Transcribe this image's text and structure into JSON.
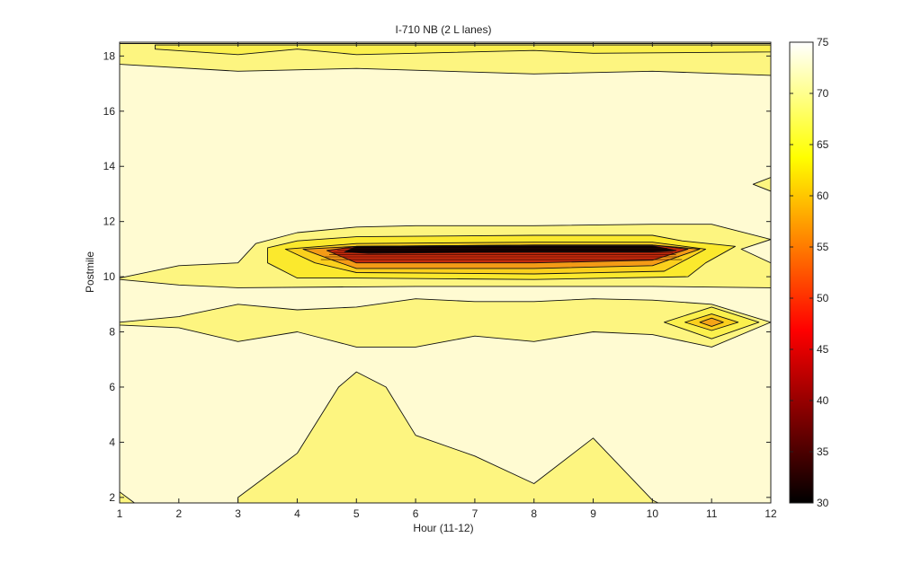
{
  "chart_data": {
    "type": "contour",
    "title": "I-710 NB (2 L lanes)",
    "xlabel": "Hour (11-12)",
    "ylabel": "Postmile",
    "xlim": [
      1,
      12
    ],
    "ylim": [
      1.8,
      18.5
    ],
    "x_ticks": [
      1,
      2,
      3,
      4,
      5,
      6,
      7,
      8,
      9,
      10,
      11,
      12
    ],
    "y_ticks": [
      2,
      4,
      6,
      8,
      10,
      12,
      14,
      16,
      18
    ],
    "colorbar": {
      "colormap": "hot",
      "min": 30,
      "max": 75,
      "ticks": [
        30,
        35,
        40,
        45,
        50,
        55,
        60,
        65,
        70,
        75
      ]
    },
    "regions": [
      {
        "name": "background",
        "level": 72,
        "color": "#fffbd2",
        "polygon": [
          [
            1,
            1.8
          ],
          [
            12,
            1.8
          ],
          [
            12,
            18.5
          ],
          [
            1,
            18.5
          ]
        ]
      },
      {
        "name": "top-band",
        "level": 68,
        "color": "#fdf580",
        "polygon": [
          [
            1,
            17.7
          ],
          [
            3,
            17.45
          ],
          [
            5,
            17.55
          ],
          [
            8,
            17.35
          ],
          [
            10,
            17.45
          ],
          [
            12,
            17.3
          ],
          [
            12,
            18.45
          ],
          [
            1,
            18.45
          ]
        ]
      },
      {
        "name": "top-band-inner",
        "level": 66,
        "color": "#fbf04d",
        "polygon": [
          [
            1.6,
            18.25
          ],
          [
            3,
            18.05
          ],
          [
            4,
            18.25
          ],
          [
            5,
            18.05
          ],
          [
            8,
            18.2
          ],
          [
            9,
            18.1
          ],
          [
            12,
            18.15
          ],
          [
            12,
            18.4
          ],
          [
            1.6,
            18.4
          ]
        ]
      },
      {
        "name": "hot-spot-edge",
        "level": 70,
        "color": "#fdf580",
        "polygon": [
          [
            12,
            13.6
          ],
          [
            11.7,
            13.35
          ],
          [
            12,
            13.1
          ]
        ]
      },
      {
        "name": "middle-band",
        "level": 68,
        "color": "#fdf580",
        "polygon": [
          [
            1,
            9.95
          ],
          [
            2,
            10.4
          ],
          [
            3,
            10.5
          ],
          [
            3.3,
            11.2
          ],
          [
            4,
            11.6
          ],
          [
            5,
            11.8
          ],
          [
            6,
            11.85
          ],
          [
            8,
            11.85
          ],
          [
            10,
            11.9
          ],
          [
            11,
            11.9
          ],
          [
            12,
            11.35
          ],
          [
            11.5,
            11
          ],
          [
            12,
            10.5
          ],
          [
            12,
            9.6
          ],
          [
            10,
            9.65
          ],
          [
            8,
            9.65
          ],
          [
            6,
            9.65
          ],
          [
            3,
            9.6
          ],
          [
            2,
            9.7
          ],
          [
            1,
            9.9
          ]
        ]
      },
      {
        "name": "slowdown-outer",
        "level": 63,
        "color": "#fbe92d",
        "polygon": [
          [
            3.5,
            11.05
          ],
          [
            4,
            11.3
          ],
          [
            5,
            11.45
          ],
          [
            8,
            11.5
          ],
          [
            10,
            11.5
          ],
          [
            10.5,
            11.3
          ],
          [
            11.4,
            11.1
          ],
          [
            10.9,
            10.5
          ],
          [
            10.6,
            10.0
          ],
          [
            8,
            9.9
          ],
          [
            5,
            9.95
          ],
          [
            4,
            9.95
          ],
          [
            3.5,
            10.5
          ]
        ]
      },
      {
        "name": "slowdown-inner",
        "level": 60,
        "color": "#fbd01d",
        "polygon": [
          [
            3.8,
            11.0
          ],
          [
            5,
            11.2
          ],
          [
            8,
            11.25
          ],
          [
            10,
            11.25
          ],
          [
            10.9,
            11.0
          ],
          [
            10.2,
            10.2
          ],
          [
            8,
            10.1
          ],
          [
            5,
            10.15
          ],
          [
            4.3,
            10.5
          ]
        ]
      },
      {
        "name": "slowdown-orange",
        "level": 55,
        "color": "#f49b16",
        "polygon": [
          [
            4.1,
            11.0
          ],
          [
            5,
            11.1
          ],
          [
            8,
            11.15
          ],
          [
            10,
            11.15
          ],
          [
            10.8,
            11.0
          ],
          [
            10,
            10.4
          ],
          [
            8,
            10.3
          ],
          [
            5,
            10.3
          ],
          [
            4.6,
            10.6
          ]
        ]
      },
      {
        "name": "slowdown-red",
        "level": 45,
        "color": "#c42a0c",
        "polygon": [
          [
            4.5,
            10.95
          ],
          [
            5,
            11.1
          ],
          [
            8,
            11.15
          ],
          [
            10,
            11.15
          ],
          [
            10.6,
            11.0
          ],
          [
            10,
            10.6
          ],
          [
            8,
            10.5
          ],
          [
            5,
            10.5
          ]
        ]
      },
      {
        "name": "slowdown-core",
        "level": 32,
        "color": "#0a0000",
        "polygon": [
          [
            4.8,
            10.9
          ],
          [
            5,
            11.1
          ],
          [
            8,
            11.12
          ],
          [
            10,
            11.12
          ],
          [
            10.4,
            10.95
          ],
          [
            10,
            10.9
          ],
          [
            8,
            10.9
          ],
          [
            5.2,
            10.85
          ]
        ]
      },
      {
        "name": "lower-band",
        "level": 68,
        "color": "#fdf580",
        "polygon": [
          [
            1,
            8.35
          ],
          [
            2,
            8.55
          ],
          [
            3,
            9.0
          ],
          [
            4,
            8.8
          ],
          [
            5,
            8.9
          ],
          [
            6,
            9.2
          ],
          [
            7,
            9.1
          ],
          [
            8,
            9.1
          ],
          [
            9,
            9.2
          ],
          [
            10,
            9.15
          ],
          [
            11,
            9.0
          ],
          [
            12,
            8.35
          ],
          [
            11,
            7.45
          ],
          [
            10,
            7.9
          ],
          [
            9,
            8.0
          ],
          [
            8,
            7.65
          ],
          [
            7,
            7.85
          ],
          [
            6,
            7.45
          ],
          [
            5,
            7.45
          ],
          [
            4,
            8.0
          ],
          [
            3,
            7.65
          ],
          [
            2,
            8.15
          ],
          [
            1,
            8.25
          ]
        ]
      },
      {
        "name": "spot-outer",
        "level": 65,
        "color": "#fbf04d",
        "polygon": [
          [
            10.2,
            8.35
          ],
          [
            11,
            8.9
          ],
          [
            11.8,
            8.35
          ],
          [
            11,
            7.75
          ]
        ]
      },
      {
        "name": "spot-mid",
        "level": 62,
        "color": "#fbd01d",
        "polygon": [
          [
            10.55,
            8.35
          ],
          [
            11,
            8.65
          ],
          [
            11.45,
            8.35
          ],
          [
            11,
            8.05
          ]
        ]
      },
      {
        "name": "spot-core",
        "level": 58,
        "color": "#f4a418",
        "polygon": [
          [
            10.8,
            8.35
          ],
          [
            11,
            8.5
          ],
          [
            11.2,
            8.35
          ],
          [
            11,
            8.2
          ]
        ]
      },
      {
        "name": "bottom-mound",
        "level": 68,
        "color": "#fdf580",
        "polygon": [
          [
            3,
            1.8
          ],
          [
            3,
            2.0
          ],
          [
            4,
            3.6
          ],
          [
            4.7,
            6.0
          ],
          [
            5,
            6.55
          ],
          [
            5.5,
            6.0
          ],
          [
            6,
            4.25
          ],
          [
            7,
            3.5
          ],
          [
            8,
            2.5
          ],
          [
            9,
            4.15
          ],
          [
            10,
            1.9
          ],
          [
            10.1,
            1.8
          ]
        ]
      },
      {
        "name": "bottom-corner",
        "level": 68,
        "color": "#fdf580",
        "polygon": [
          [
            1,
            1.8
          ],
          [
            1,
            2.2
          ],
          [
            1.25,
            1.8
          ]
        ]
      }
    ]
  }
}
